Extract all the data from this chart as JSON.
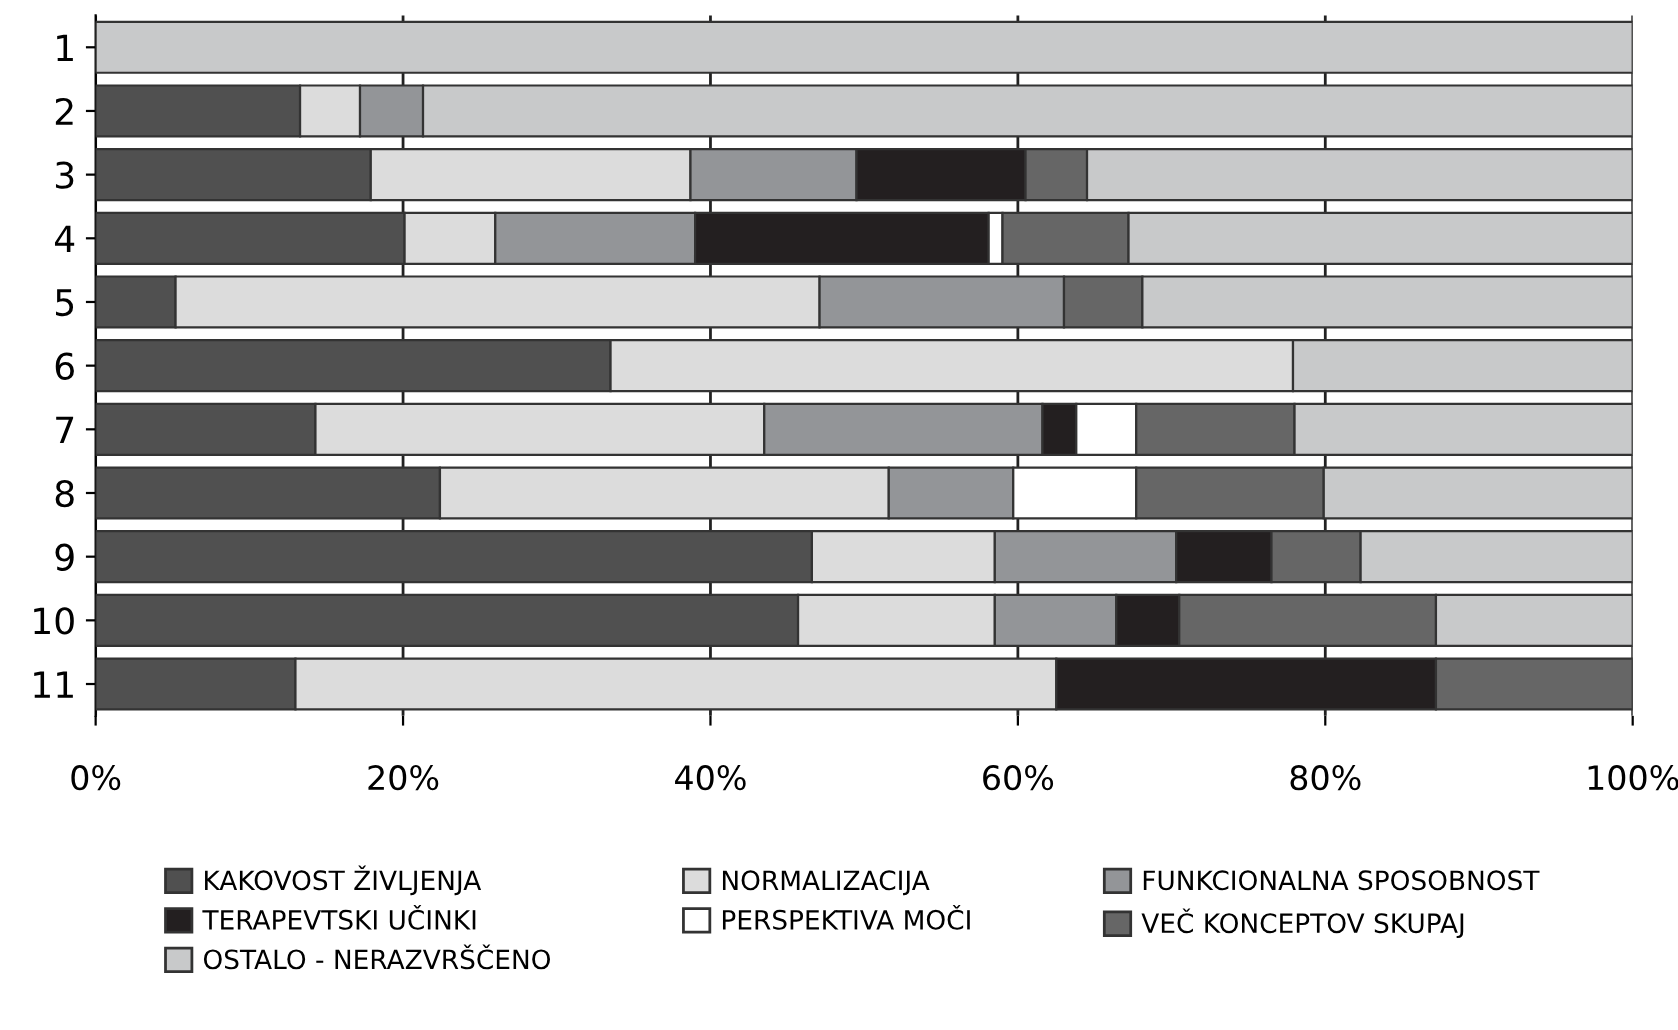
{
  "chart_data": {
    "type": "bar",
    "orientation": "horizontal",
    "stacked": true,
    "categories": [
      "1",
      "2",
      "3",
      "4",
      "5",
      "6",
      "7",
      "8",
      "9",
      "10",
      "11"
    ],
    "series": [
      {
        "name": "KAKOVOST ŽIVLJENJA",
        "color": "#505050",
        "values": [
          null,
          13.3,
          17.9,
          20.1,
          5.2,
          33.5,
          14.3,
          22.4,
          46.6,
          45.7,
          13.0
        ]
      },
      {
        "name": "NORMALIZACIJA",
        "color": "#dcdcdc",
        "values": [
          null,
          3.9,
          20.8,
          5.9,
          41.9,
          44.4,
          29.2,
          29.2,
          11.9,
          12.8,
          49.5
        ]
      },
      {
        "name": "FUNKCIONALNA SPOSOBNOST",
        "color": "#939598",
        "values": [
          null,
          4.1,
          10.8,
          13.0,
          15.9,
          null,
          18.1,
          8.1,
          11.8,
          7.9,
          null
        ]
      },
      {
        "name": "TERAPEVTSKI UČINKI",
        "color": "#231f20",
        "values": [
          null,
          null,
          11.0,
          19.1,
          null,
          null,
          2.2,
          null,
          6.2,
          4.1,
          24.7
        ]
      },
      {
        "name": "PERSPEKTIVA MOČI",
        "color": "#ffffff",
        "values": [
          null,
          null,
          null,
          0.9,
          null,
          null,
          3.9,
          8.0,
          null,
          null,
          null
        ]
      },
      {
        "name": "VEČ KONCEPTOV SKUPAJ",
        "color": "#666666",
        "values": [
          null,
          null,
          4.0,
          8.2,
          5.1,
          null,
          10.3,
          12.2,
          5.8,
          16.7,
          12.8
        ]
      },
      {
        "name": "OSTALO - NERAZVRŠČENO",
        "color": "#c8c9ca",
        "values": [
          100,
          78.7,
          35.5,
          32.8,
          31.9,
          22.1,
          22.0,
          20.1,
          17.7,
          12.8,
          null
        ]
      }
    ],
    "xlim": [
      0,
      100
    ],
    "xticks": [
      {
        "value": 0,
        "label": "0%"
      },
      {
        "value": 20,
        "label": "20%"
      },
      {
        "value": 40,
        "label": "40%"
      },
      {
        "value": 60,
        "label": "60%"
      },
      {
        "value": 80,
        "label": "80%"
      },
      {
        "value": 100,
        "label": "100%"
      }
    ],
    "grid": "x",
    "legend": "bottom"
  }
}
